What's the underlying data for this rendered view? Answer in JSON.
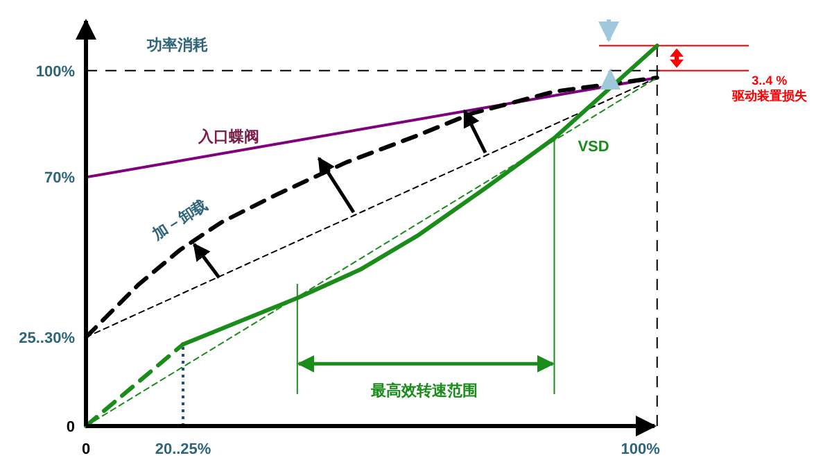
{
  "chart_data": {
    "type": "line",
    "ylabel": "功率消耗",
    "xlim": [
      0,
      101
    ],
    "ylim": [
      0,
      114
    ],
    "xticks": [
      0,
      {
        "value": 17,
        "label": "20..25%"
      },
      {
        "value": 100,
        "label": "100%"
      }
    ],
    "yticks": [
      0,
      {
        "value": 25,
        "label": "25..30%"
      },
      {
        "value": 70,
        "label": "70%"
      },
      {
        "value": 100,
        "label": "100%"
      }
    ],
    "series": [
      {
        "name": "入口蝶阀",
        "color": "#800080",
        "line_style": "solid",
        "x": [
          0,
          100
        ],
        "values": [
          70,
          98
        ]
      },
      {
        "name": "加－卸载",
        "color": "#000000",
        "line_style": "dashed",
        "x": [
          0,
          9.2,
          16.5,
          23.8,
          33.5,
          45.6,
          57.8,
          67.5,
          82,
          100
        ],
        "values": [
          25,
          39.8,
          49.6,
          57.4,
          65.2,
          74.2,
          81.6,
          87.9,
          94.1,
          98
        ]
      },
      {
        "color": "#000000",
        "line_style": "dashed",
        "x": [
          0,
          100
        ],
        "values": [
          25,
          98
        ]
      },
      {
        "name": "VSD",
        "color": "#1a8c1a",
        "line_style": "solid",
        "x": [
          17,
          37,
          48,
          58,
          70,
          82,
          100
        ],
        "values": [
          23,
          36,
          44,
          53.5,
          67,
          81,
          107
        ]
      },
      {
        "color": "#1a8c1a",
        "line_style": "dashed",
        "x": [
          0,
          17
        ],
        "values": [
          0,
          23
        ]
      },
      {
        "color": "#1a8c1a",
        "line_style": "dashed",
        "x": [
          0,
          100
        ],
        "values": [
          0,
          98
        ]
      }
    ],
    "ref_lines": [
      {
        "axis": "y",
        "value": 100,
        "color": "#000000",
        "line_style": "dashed"
      },
      {
        "axis": "x",
        "value": 100,
        "color": "#000000",
        "line_style": "dashed"
      },
      {
        "axis": "x",
        "value": 17,
        "color": "#1f4e79",
        "line_style": "dotted"
      },
      {
        "axis": "x",
        "value": 37,
        "color": "#1a8c1a",
        "line_style": "solid"
      },
      {
        "axis": "x",
        "value": 82,
        "color": "#1a8c1a",
        "line_style": "solid"
      },
      {
        "axis": "y",
        "value": 107,
        "color": "#ff0000",
        "line_style": "solid"
      }
    ],
    "annotations": [
      "最高效转速范围",
      {
        "text": "3..4 %",
        "x": 100,
        "y": 100
      },
      "驱动装置损失"
    ],
    "grid": false,
    "legend": false,
    "marker": "none"
  }
}
